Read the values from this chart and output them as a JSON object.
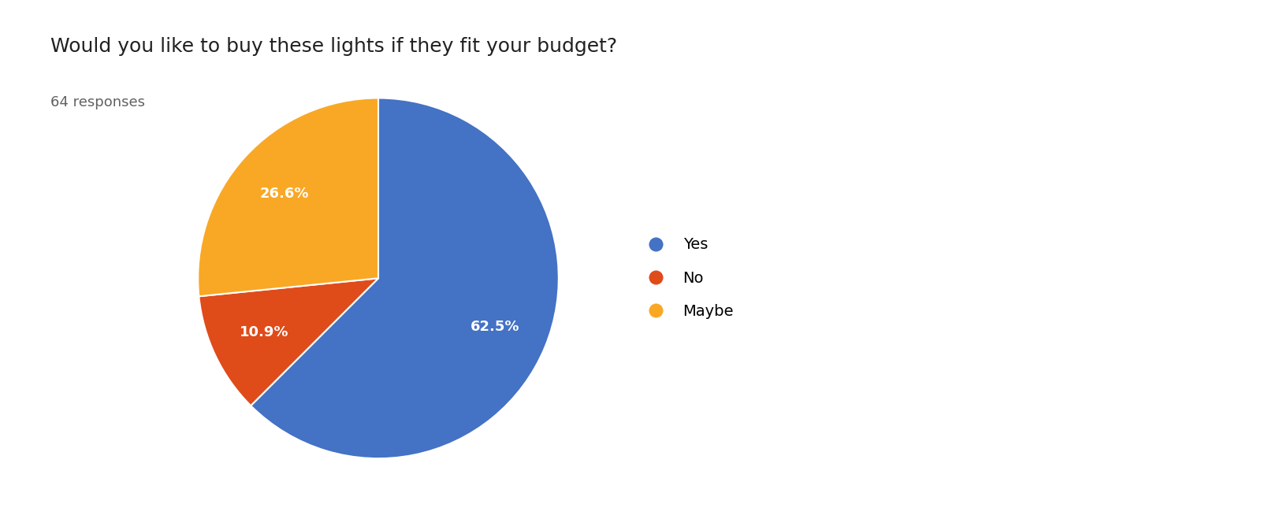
{
  "title": "Would you like to buy these lights if they fit your budget?",
  "subtitle": "64 responses",
  "labels": [
    "Yes",
    "No",
    "Maybe"
  ],
  "values": [
    62.5,
    10.9,
    26.6
  ],
  "colors": [
    "#4472C4",
    "#E04B1A",
    "#F9A825"
  ],
  "background_color": "#ffffff",
  "title_fontsize": 18,
  "subtitle_fontsize": 13,
  "legend_fontsize": 14
}
